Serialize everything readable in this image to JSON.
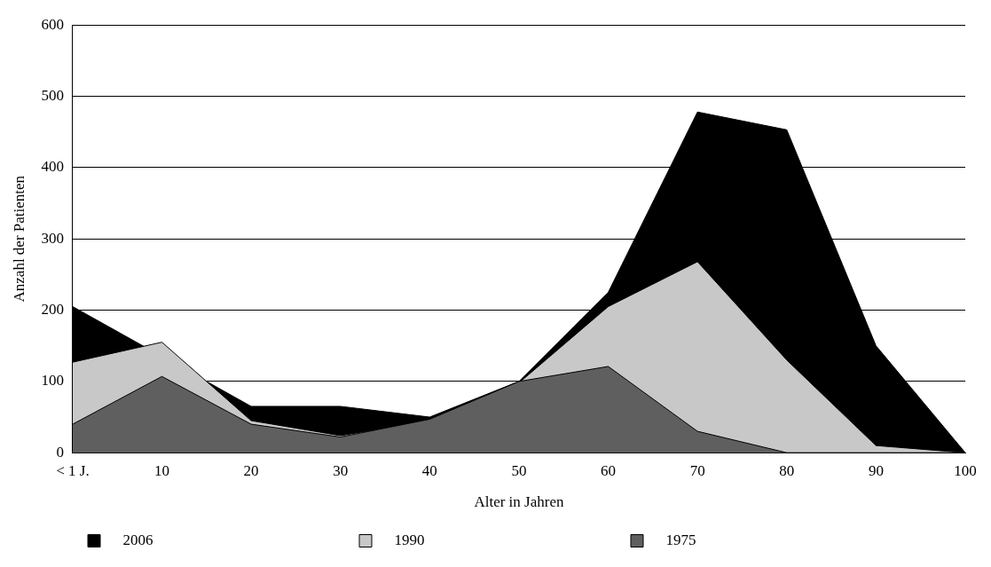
{
  "chart_data": {
    "type": "area",
    "xlabel": "Alter in Jahren",
    "ylabel": "Anzahl der Patienten",
    "categories": [
      "< 1 J.",
      "10",
      "20",
      "30",
      "40",
      "50",
      "60",
      "70",
      "80",
      "90",
      "100"
    ],
    "series": [
      {
        "name": "2006",
        "color": "#000000",
        "values": [
          205,
          null,
          65,
          65,
          50,
          100,
          225,
          478,
          453,
          150,
          0
        ]
      },
      {
        "name": "1990",
        "color": "#c8c8c8",
        "values": [
          127,
          155,
          45,
          24,
          45,
          98,
          205,
          268,
          130,
          10,
          0
        ]
      },
      {
        "name": "1975",
        "color": "#5f5f5f",
        "values": [
          40,
          107,
          40,
          22,
          47,
          100,
          121,
          30,
          0,
          0,
          0
        ]
      }
    ],
    "ylim": [
      0,
      600
    ],
    "yticks": [
      0,
      100,
      200,
      300,
      400,
      500,
      600
    ],
    "grid": "y",
    "legend": "bottom",
    "marker": "none",
    "line_style": "solid"
  }
}
